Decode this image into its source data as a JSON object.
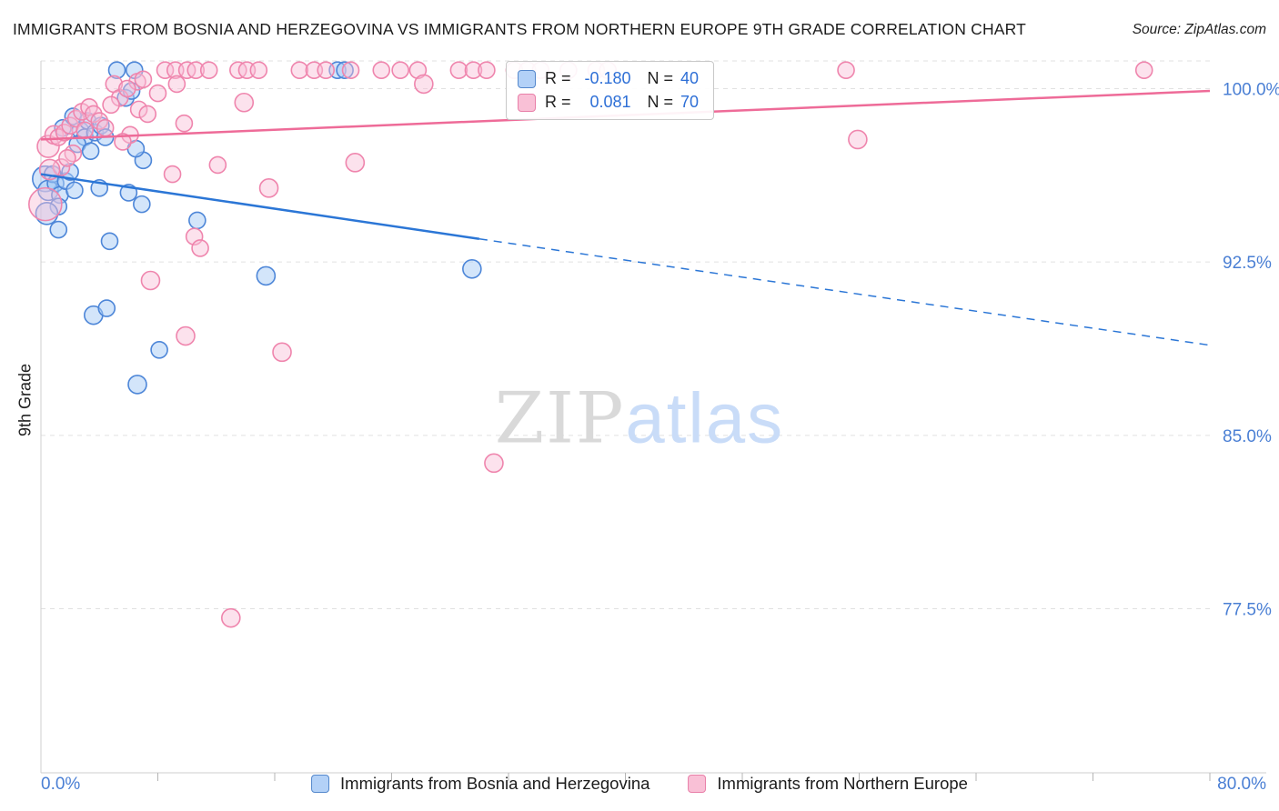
{
  "header": {
    "title": "IMMIGRANTS FROM BOSNIA AND HERZEGOVINA VS IMMIGRANTS FROM NORTHERN EUROPE 9TH GRADE CORRELATION CHART",
    "source": "Source: ZipAtlas.com"
  },
  "watermark": {
    "part1": "ZIP",
    "part2": "atlas"
  },
  "axes": {
    "ylabel": "9th Grade",
    "x_left_label": "0.0%",
    "x_right_label": "80.0%"
  },
  "stats_box": {
    "rows": [
      {
        "r_label": "R =",
        "r_value": "-0.180",
        "n_label": "N =",
        "n_value": "40"
      },
      {
        "r_label": "R =",
        "r_value": "0.081",
        "n_label": "N =",
        "n_value": "70"
      }
    ]
  },
  "legend": {
    "items": [
      {
        "label": "Immigrants from Bosnia and Herzegovina"
      },
      {
        "label": "Immigrants from Northern Europe"
      }
    ]
  },
  "chart_data": {
    "type": "scatter",
    "title": "Immigrants from Bosnia and Herzegovina vs Immigrants from Northern Europe 9th Grade",
    "xlabel": "",
    "ylabel": "9th Grade",
    "xlim": [
      0,
      80
    ],
    "ylim": [
      70.4,
      101.2
    ],
    "x_ticks": [
      8,
      16,
      24,
      32,
      40,
      48,
      56,
      64,
      72,
      80
    ],
    "y_ticks": [
      100.0,
      92.5,
      85.0,
      77.5
    ],
    "y_tick_labels": [
      "100.0%",
      "92.5%",
      "85.0%",
      "77.5%"
    ],
    "grid": true,
    "legend_position": "bottom",
    "colors": {
      "blue_fill": "#a8cbf5",
      "blue_stroke": "#4d86d8",
      "blue_line": "#2b76d6",
      "pink_fill": "#f8bfd6",
      "pink_stroke": "#ef85ad",
      "pink_line": "#ee6b98",
      "tick_label": "#4a7fd4",
      "gridline": "#e1e1e1"
    },
    "series": [
      {
        "id": "bosnia",
        "name": "Immigrants from Bosnia and Herzegovina",
        "R": -0.18,
        "N": 40,
        "fill": "#a8cbf5",
        "fill_opacity": 0.5,
        "stroke": "#4d86d8",
        "line_color": "#2b76d6",
        "trend": {
          "x_start": 0,
          "y_start": 96.3,
          "x_solid_end": 30,
          "y_solid_end": 93.5,
          "x_end": 80,
          "y_end": 88.9
        },
        "points": [
          [
            0.3,
            96.1,
            14
          ],
          [
            0.5,
            95.6,
            11
          ],
          [
            0.8,
            96.3,
            9
          ],
          [
            1.0,
            95.9,
            9
          ],
          [
            1.3,
            95.4,
            9
          ],
          [
            1.7,
            96.0,
            9
          ],
          [
            2.0,
            96.4,
            9
          ],
          [
            1.2,
            94.9,
            9
          ],
          [
            2.3,
            95.6,
            9
          ],
          [
            0.4,
            94.6,
            12
          ],
          [
            1.5,
            98.3,
            9
          ],
          [
            2.2,
            98.8,
            9
          ],
          [
            2.7,
            98.2,
            9
          ],
          [
            3.2,
            98.6,
            9
          ],
          [
            3.0,
            97.9,
            9
          ],
          [
            3.7,
            98.1,
            9
          ],
          [
            2.5,
            97.6,
            9
          ],
          [
            3.4,
            97.3,
            9
          ],
          [
            4.1,
            98.4,
            9
          ],
          [
            4.4,
            97.9,
            9
          ],
          [
            5.8,
            99.6,
            9
          ],
          [
            6.2,
            99.9,
            9
          ],
          [
            5.2,
            100.8,
            9
          ],
          [
            6.4,
            100.8,
            9
          ],
          [
            20.3,
            100.8,
            9
          ],
          [
            20.8,
            100.8,
            9
          ],
          [
            4.0,
            95.7,
            9
          ],
          [
            6.0,
            95.5,
            9
          ],
          [
            7.0,
            96.9,
            9
          ],
          [
            6.5,
            97.4,
            9
          ],
          [
            10.7,
            94.3,
            9
          ],
          [
            1.2,
            93.9,
            9
          ],
          [
            4.7,
            93.4,
            9
          ],
          [
            3.6,
            90.2,
            10
          ],
          [
            4.5,
            90.5,
            9
          ],
          [
            6.6,
            87.2,
            10
          ],
          [
            8.1,
            88.7,
            9
          ],
          [
            15.4,
            91.9,
            10
          ],
          [
            29.5,
            92.2,
            10
          ],
          [
            6.9,
            95.0,
            9
          ]
        ]
      },
      {
        "id": "northern-europe",
        "name": "Immigrants from Northern Europe",
        "R": 0.081,
        "N": 70,
        "fill": "#f8bfd6",
        "fill_opacity": 0.45,
        "stroke": "#ef85ad",
        "line_color": "#ee6b98",
        "trend": {
          "x_start": 0,
          "y_start": 97.8,
          "x_end": 80,
          "y_end": 99.9
        },
        "points": [
          [
            8.5,
            100.8,
            9
          ],
          [
            9.2,
            100.8,
            9
          ],
          [
            10.0,
            100.8,
            9
          ],
          [
            10.6,
            100.8,
            9
          ],
          [
            11.5,
            100.8,
            9
          ],
          [
            13.5,
            100.8,
            9
          ],
          [
            14.1,
            100.8,
            9
          ],
          [
            14.9,
            100.8,
            9
          ],
          [
            17.7,
            100.8,
            9
          ],
          [
            18.7,
            100.8,
            9
          ],
          [
            19.5,
            100.8,
            9
          ],
          [
            21.2,
            100.8,
            9
          ],
          [
            23.3,
            100.8,
            9
          ],
          [
            24.6,
            100.8,
            9
          ],
          [
            25.8,
            100.8,
            9
          ],
          [
            28.6,
            100.8,
            9
          ],
          [
            29.6,
            100.8,
            9
          ],
          [
            30.5,
            100.8,
            9
          ],
          [
            32.4,
            100.8,
            9
          ],
          [
            33.3,
            100.8,
            9
          ],
          [
            34.2,
            100.8,
            9
          ],
          [
            36.1,
            100.8,
            9
          ],
          [
            38.0,
            100.8,
            9
          ],
          [
            38.8,
            100.8,
            9
          ],
          [
            55.1,
            100.8,
            9
          ],
          [
            75.5,
            100.8,
            9
          ],
          [
            0.3,
            95.0,
            18
          ],
          [
            0.5,
            97.5,
            12
          ],
          [
            0.9,
            98.0,
            10
          ],
          [
            1.2,
            97.9,
            9
          ],
          [
            1.6,
            98.1,
            9
          ],
          [
            2.0,
            98.4,
            9
          ],
          [
            2.4,
            98.7,
            9
          ],
          [
            2.8,
            99.0,
            9
          ],
          [
            3.3,
            99.2,
            9
          ],
          [
            3.6,
            98.9,
            9
          ],
          [
            4.0,
            98.6,
            9
          ],
          [
            4.4,
            98.3,
            9
          ],
          [
            5.0,
            100.2,
            9
          ],
          [
            5.4,
            99.6,
            9
          ],
          [
            6.6,
            100.3,
            9
          ],
          [
            6.1,
            98.0,
            9
          ],
          [
            5.6,
            97.7,
            9
          ],
          [
            6.7,
            99.1,
            9
          ],
          [
            7.3,
            98.9,
            9
          ],
          [
            9.3,
            100.2,
            9
          ],
          [
            9.8,
            98.5,
            9
          ],
          [
            13.9,
            99.4,
            10
          ],
          [
            12.1,
            96.7,
            9
          ],
          [
            21.5,
            96.8,
            10
          ],
          [
            15.6,
            95.7,
            10
          ],
          [
            9.0,
            96.3,
            9
          ],
          [
            1.4,
            96.6,
            9
          ],
          [
            7.5,
            91.7,
            10
          ],
          [
            9.9,
            89.3,
            10
          ],
          [
            16.5,
            88.6,
            10
          ],
          [
            10.5,
            93.6,
            9
          ],
          [
            10.9,
            93.1,
            9
          ],
          [
            31.0,
            83.8,
            10
          ],
          [
            13.0,
            77.1,
            10
          ],
          [
            55.9,
            97.8,
            10
          ],
          [
            2.2,
            97.2,
            9
          ],
          [
            3.0,
            98.2,
            9
          ],
          [
            4.8,
            99.3,
            9
          ],
          [
            5.9,
            100.0,
            9
          ],
          [
            7.0,
            100.4,
            9
          ],
          [
            8.0,
            99.8,
            9
          ],
          [
            26.2,
            100.2,
            10
          ],
          [
            0.6,
            96.5,
            11
          ],
          [
            1.8,
            97.0,
            9
          ]
        ]
      }
    ]
  }
}
